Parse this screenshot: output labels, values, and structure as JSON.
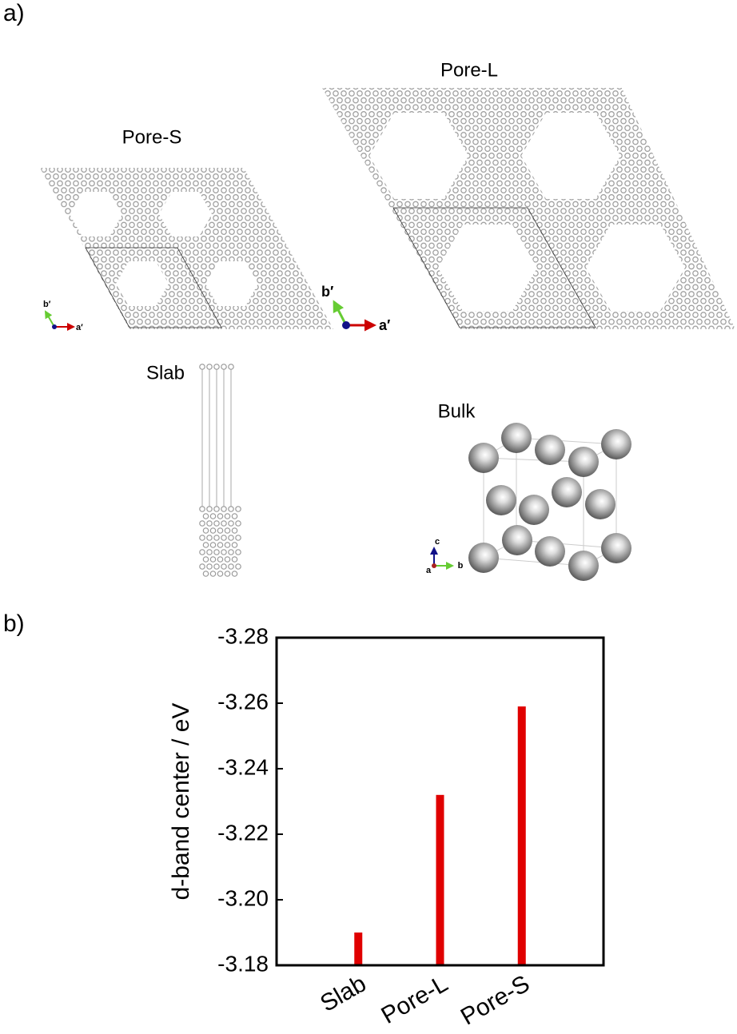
{
  "panels": {
    "a": {
      "label": "a)",
      "structures": [
        "Pore-S",
        "Pore-L",
        "Slab",
        "Bulk"
      ],
      "axes_pore_s": [
        "b′",
        "a′"
      ],
      "axes_pore_l": [
        "b′",
        "a′"
      ],
      "axes_bulk": [
        "c",
        "a",
        "b"
      ]
    },
    "b": {
      "label": "b)"
    }
  },
  "chart_data": {
    "type": "bar",
    "y_label": "d-band center / eV",
    "categories": [
      "Slab",
      "Pore-L",
      "Pore-S"
    ],
    "values": [
      -3.19,
      -3.232,
      -3.259
    ],
    "color": "#e00000",
    "ylim": [
      -3.18,
      -3.28
    ],
    "yticks": [
      -3.18,
      {
        "value": -3.2,
        "label": "-3.20"
      },
      -3.22,
      -3.24,
      -3.26,
      -3.28
    ]
  }
}
